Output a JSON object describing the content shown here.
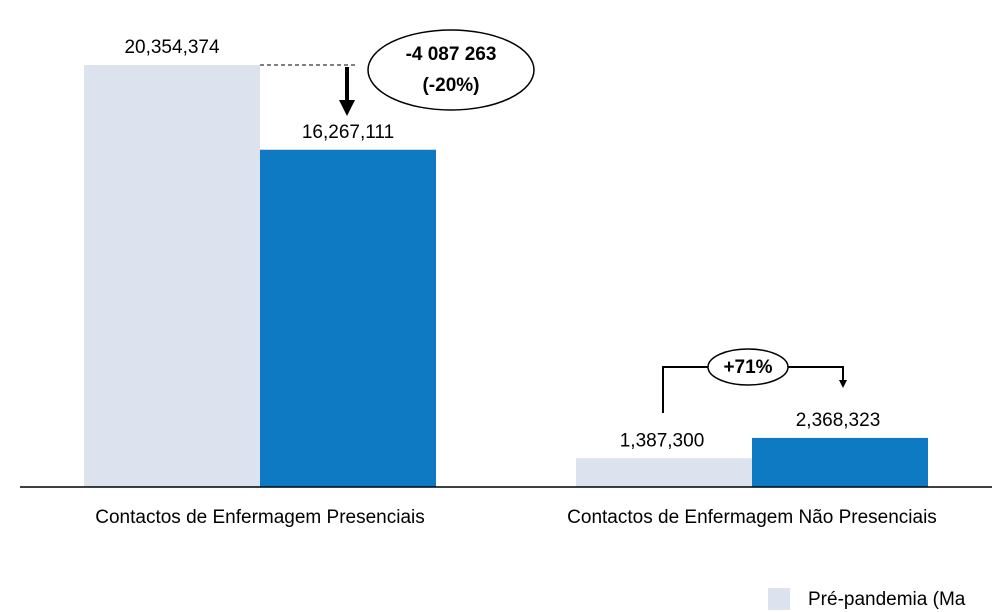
{
  "chart_data": {
    "type": "bar",
    "categories": [
      "Contactos de Enfermagem Presenciais",
      "Contactos de Enfermagem Não Presenciais"
    ],
    "series": [
      {
        "name": "Pré-pandemia (Ma",
        "color": "#dde3ee",
        "values": [
          20354374,
          1387300
        ],
        "value_labels": [
          "20,354,374",
          "1,387,300"
        ]
      },
      {
        "color": "#0f7ac4",
        "values": [
          16267111,
          2368323
        ],
        "value_labels": [
          "16,267,111",
          "2,368,323"
        ]
      }
    ],
    "ylim": [
      0,
      20354374
    ],
    "annotations": [
      "-4 087 263",
      "(-20%)",
      "+71%"
    ]
  }
}
